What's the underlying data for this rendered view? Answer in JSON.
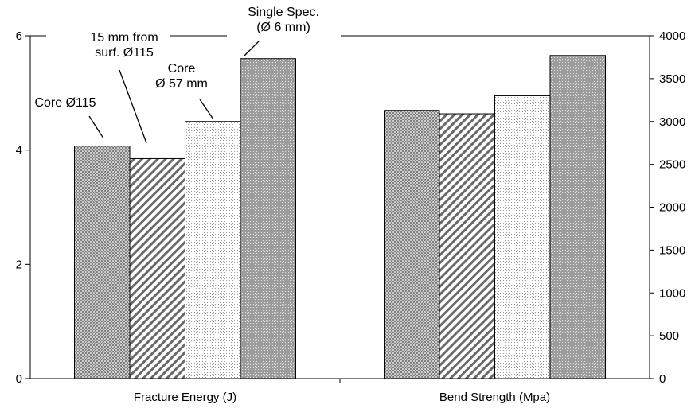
{
  "chart_data": {
    "type": "bar",
    "categories": [
      "Fracture Energy (J)",
      "Bend Strength (Mpa)"
    ],
    "series": [
      {
        "name": "Core Ø115",
        "values": [
          4.07,
          3130
        ]
      },
      {
        "name": "15 mm from surf. Ø115",
        "values": [
          3.85,
          3090
        ]
      },
      {
        "name": "Core Ø 57 mm",
        "values": [
          4.5,
          3300
        ]
      },
      {
        "name": "Single Spec. (Ø 6 mm)",
        "values": [
          5.6,
          3770
        ]
      }
    ],
    "series_axis": [
      "left",
      "right"
    ],
    "y_left": {
      "min": 0,
      "max": 6,
      "ticks": [
        "0",
        "2",
        "4",
        "6"
      ]
    },
    "y_right": {
      "min": 0,
      "max": 4000,
      "ticks": [
        "0",
        "500",
        "1000",
        "1500",
        "2000",
        "2500",
        "3000",
        "3500",
        "4000"
      ]
    },
    "annotations": [
      {
        "series": 0,
        "lines": [
          "Core Ø115"
        ]
      },
      {
        "series": 1,
        "lines": [
          "15 mm from",
          "surf.  Ø115"
        ]
      },
      {
        "series": 2,
        "lines": [
          "Core",
          "Ø 57 mm"
        ]
      },
      {
        "series": 3,
        "lines": [
          "Single Spec.",
          "(Ø 6 mm)"
        ]
      }
    ],
    "patterns": [
      "crosshatch",
      "diagonal",
      "dots-light",
      "dots-dark"
    ],
    "grid": false,
    "legend": "none (labels annotated on bars)"
  }
}
